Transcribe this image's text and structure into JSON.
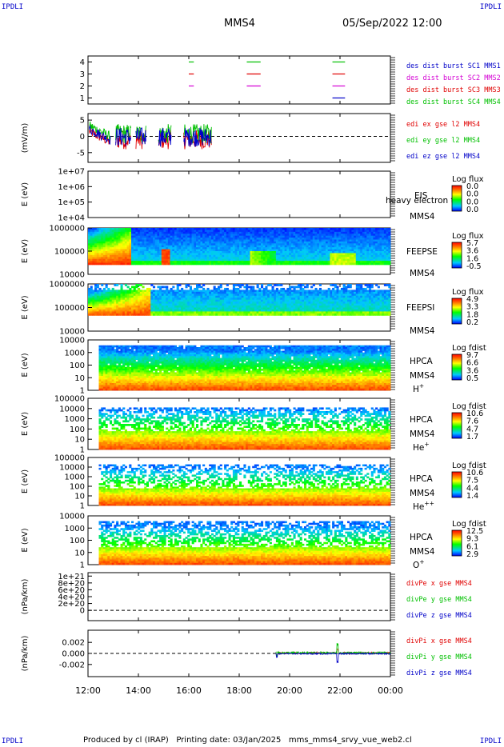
{
  "corner_labels": {
    "top_left": "IPDLI",
    "top_right": "IPDLI",
    "bottom_left": "IPDLI",
    "bottom_right": "IPDLI"
  },
  "header": {
    "spacecraft": "MMS4",
    "datetime": "05/Sep/2022 12:00"
  },
  "footer": {
    "text": "Produced by cl (IRAP)   Printing date: 03/Jan/2025   mms_mms4_srvy_vue_web2.cl"
  },
  "colors": {
    "mms1": "#0000c8",
    "mms2": "#d400d4",
    "mms3": "#e00000",
    "mms4": "#00c000",
    "x": "#e00000",
    "y": "#00c000",
    "z": "#0000c8"
  },
  "chart_data": [
    {
      "id": "burst",
      "type": "line",
      "ylim": [
        0.5,
        4.5
      ],
      "yticks": [
        "1",
        "2",
        "3",
        "4"
      ],
      "ytick_values": [
        1,
        2,
        3,
        4
      ],
      "legend": [
        "des dist burst SC1 MMS1",
        "des dist burst SC2 MMS2",
        "des dist burst SC3 MMS3",
        "des dist burst SC4 MMS4"
      ],
      "segments": [
        {
          "sc": 4,
          "start": 16.0,
          "end": 16.2
        },
        {
          "sc": 4,
          "start": 18.3,
          "end": 18.85
        },
        {
          "sc": 4,
          "start": 21.7,
          "end": 22.2
        },
        {
          "sc": 3,
          "start": 16.0,
          "end": 16.2
        },
        {
          "sc": 3,
          "start": 18.3,
          "end": 18.85
        },
        {
          "sc": 3,
          "start": 21.7,
          "end": 22.2
        },
        {
          "sc": 2,
          "start": 16.0,
          "end": 16.2
        },
        {
          "sc": 2,
          "start": 18.3,
          "end": 18.85
        },
        {
          "sc": 2,
          "start": 21.7,
          "end": 22.2
        },
        {
          "sc": 1,
          "start": 21.7,
          "end": 22.2
        }
      ]
    },
    {
      "id": "edi",
      "type": "line",
      "ylabel": "(mV/m)",
      "ylim": [
        -8,
        7
      ],
      "yticks": [
        "5",
        "0",
        "-5"
      ],
      "ytick_values": [
        5,
        0,
        -5
      ],
      "legend": [
        "edi ex gse l2 MMS4",
        "edi ey gse l2 MMS4",
        "edi ez gse l2 MMS4"
      ],
      "data_start": 12.05,
      "data_end": 16.9
    },
    {
      "id": "eis",
      "type": "heatmap",
      "ylabel": "E (eV)",
      "yticks": [
        "1e+07",
        "1e+06",
        "1e+05",
        "1e+04"
      ],
      "labels": [
        "EIS",
        "heavy electron to",
        "MMS4"
      ],
      "colorbar_title": "Log flux",
      "colorbar_ticks": [
        "0.0",
        "0.0",
        "0.0",
        "0.0"
      ]
    },
    {
      "id": "feepse",
      "type": "heatmap",
      "ylabel": "E (eV)",
      "yticks": [
        "1000000",
        "100000",
        "10000"
      ],
      "labels": [
        "FEEPSE",
        "MMS4"
      ],
      "colorbar_title": "Log flux",
      "colorbar_ticks": [
        "5.7",
        "3.6",
        "1.6",
        "-0.5"
      ]
    },
    {
      "id": "feepsi",
      "type": "heatmap",
      "ylabel": "E (eV)",
      "yticks": [
        "1000000",
        "100000",
        "10000"
      ],
      "labels": [
        "FEEPSI",
        "MMS4"
      ],
      "colorbar_title": "Log flux",
      "colorbar_ticks": [
        "4.9",
        "3.3",
        "1.8",
        "0.2"
      ]
    },
    {
      "id": "hpca_h",
      "type": "heatmap",
      "ylabel": "E (eV)",
      "yticks": [
        "10000",
        "1000",
        "100",
        "10",
        "1"
      ],
      "labels": [
        "HPCA",
        "MMS4"
      ],
      "species": "H",
      "species_charge": "+",
      "colorbar_title": "Log fdist",
      "colorbar_ticks": [
        "9.7",
        "6.6",
        "3.6",
        "0.5"
      ]
    },
    {
      "id": "hpca_he",
      "type": "heatmap",
      "ylabel": "E (eV)",
      "yticks": [
        "100000",
        "10000",
        "1000",
        "100",
        "10",
        "1"
      ],
      "labels": [
        "HPCA",
        "MMS4"
      ],
      "species": "He",
      "species_charge": "+",
      "colorbar_title": "Log fdist",
      "colorbar_ticks": [
        "10.6",
        "7.6",
        "4.7",
        "1.7"
      ]
    },
    {
      "id": "hpca_hepp",
      "type": "heatmap",
      "ylabel": "E (eV)",
      "yticks": [
        "100000",
        "10000",
        "1000",
        "100",
        "10",
        "1"
      ],
      "labels": [
        "HPCA",
        "MMS4"
      ],
      "species": "He",
      "species_charge": "++",
      "colorbar_title": "Log fdist",
      "colorbar_ticks": [
        "10.6",
        "7.5",
        "4.4",
        "1.4"
      ]
    },
    {
      "id": "hpca_o",
      "type": "heatmap",
      "ylabel": "E (eV)",
      "yticks": [
        "10000",
        "1000",
        "100",
        "10",
        "1"
      ],
      "labels": [
        "HPCA",
        "MMS4"
      ],
      "species": "O",
      "species_charge": "+",
      "colorbar_title": "Log fdist",
      "colorbar_ticks": [
        "12.5",
        "9.3",
        "6.1",
        "2.9"
      ]
    },
    {
      "id": "divpe",
      "type": "line",
      "ylabel": "(nPa/km)",
      "ylim": [
        -3e+20,
        1.1e+21
      ],
      "yticks": [
        "1e+21",
        "8e+20",
        "6e+20",
        "4e+20",
        "2e+20",
        "0"
      ],
      "ytick_values": [
        1e+21,
        8e+20,
        6e+20,
        4e+20,
        2e+20,
        0
      ],
      "legend": [
        "divPe x gse MMS4",
        "divPe y gse MMS4",
        "divPe z gse MMS4"
      ]
    },
    {
      "id": "divpi",
      "type": "line",
      "ylabel": "(nPa/km)",
      "ylim": [
        -0.0042,
        0.0042
      ],
      "yticks": [
        "0.002",
        "0.000",
        "-0.002"
      ],
      "ytick_values": [
        0.002,
        0,
        -0.002
      ],
      "legend": [
        "divPi x gse MMS4",
        "divPi y gse MMS4",
        "divPi z gse MMS4"
      ],
      "data_start": 19.45,
      "data_end": 24.0
    }
  ],
  "x_axis": {
    "ticks": [
      "12:00",
      "14:00",
      "16:00",
      "18:00",
      "20:00",
      "22:00",
      "00:00"
    ],
    "tick_hours": [
      12,
      14,
      16,
      18,
      20,
      22,
      24
    ],
    "range": [
      12,
      24
    ]
  }
}
